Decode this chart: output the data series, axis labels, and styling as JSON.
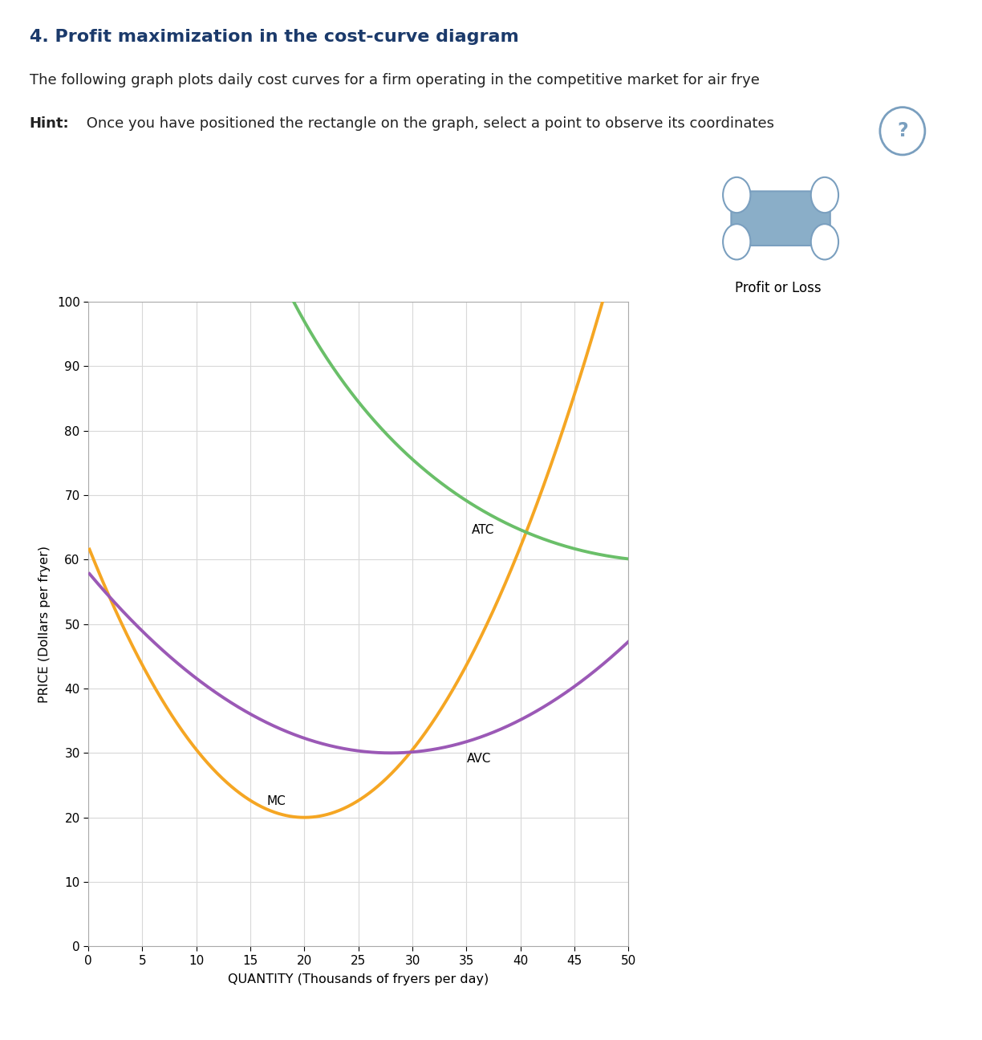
{
  "title": "4. Profit maximization in the cost-curve diagram",
  "subtitle": "The following graph plots daily cost curves for a firm operating in the competitive market for air frye",
  "hint_bold": "Hint:",
  "hint_rest": " Once you have positioned the rectangle on the graph, select a point to observe its coordinates",
  "ylabel": "PRICE (Dollars per fryer)",
  "xlabel": "QUANTITY (Thousands of fryers per day)",
  "xlim": [
    0,
    50
  ],
  "ylim": [
    0,
    100
  ],
  "xticks": [
    0,
    5,
    10,
    15,
    20,
    25,
    30,
    35,
    40,
    45,
    50
  ],
  "yticks": [
    0,
    10,
    20,
    30,
    40,
    50,
    60,
    70,
    80,
    90,
    100
  ],
  "title_color": "#1b3a6b",
  "subtitle_color": "#222222",
  "hint_color": "#222222",
  "bg_color": "#ffffff",
  "panel_border_color": "#cccccc",
  "grid_color": "#d8d8d8",
  "atc_color": "#6abf69",
  "avc_color": "#9b59b6",
  "mc_color": "#f5a623",
  "icon_fill": "#8aaec8",
  "icon_edge": "#7a9fbf",
  "q_color": "#7a9fbf",
  "profit_loss_text": "Profit or Loss",
  "atc_label": "ATC",
  "avc_label": "AVC",
  "mc_label": "MC"
}
